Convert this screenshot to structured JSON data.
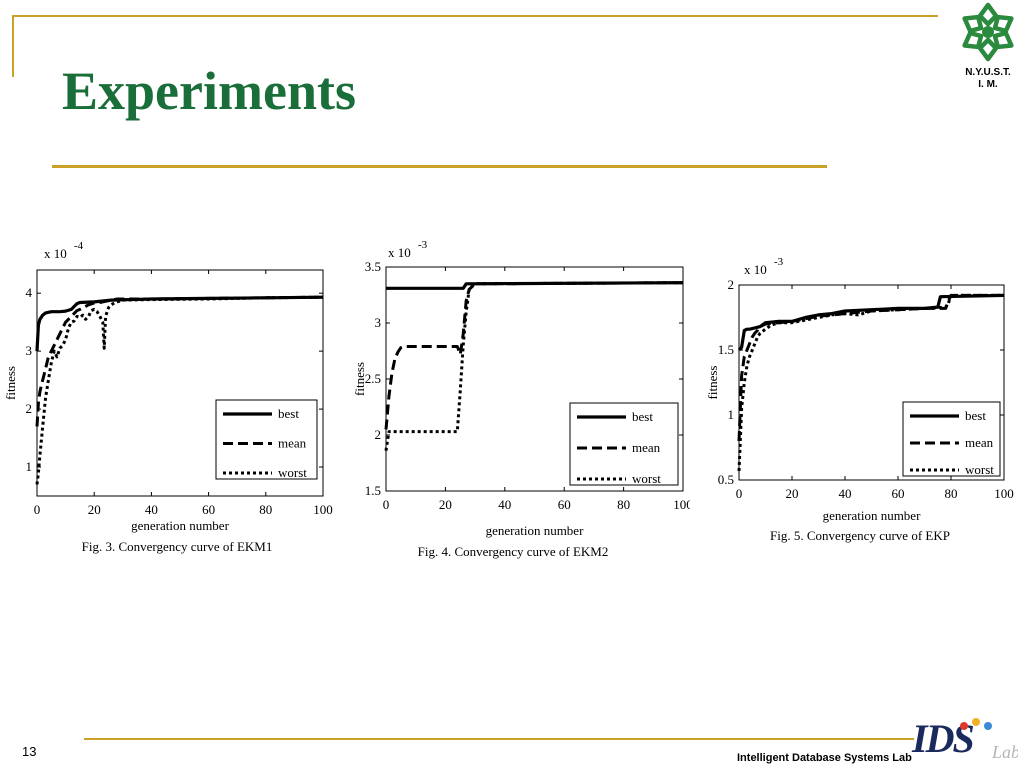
{
  "slide": {
    "title": "Experiments",
    "page_number": "13",
    "footer": "Intelligent Database Systems Lab",
    "logo_text_line1": "N.Y.U.S.T.",
    "logo_text_line2": "I. M."
  },
  "colors": {
    "title": "#1a6e3a",
    "rules": "#c9a227",
    "logo_green": "#2b8a3e",
    "ink": "#000000"
  },
  "chart_data": [
    {
      "type": "line",
      "caption": "Fig. 3. Convergency curve of EKM1",
      "xlabel": "generation number",
      "ylabel": "fitness",
      "multiplier": "x 10",
      "exponent": "-4",
      "xlim": [
        0,
        100
      ],
      "ylim": [
        0.5,
        4.4
      ],
      "xticks": [
        0,
        20,
        40,
        60,
        80,
        100
      ],
      "yticks": [
        1,
        2,
        3,
        4
      ],
      "legend": "bottom-right",
      "series": [
        {
          "name": "best",
          "style": "solid",
          "x": [
            0,
            0.5,
            1,
            2,
            3,
            5,
            8,
            10,
            12,
            14,
            15,
            20,
            26,
            40,
            60,
            80,
            100
          ],
          "y": [
            3.0,
            3.45,
            3.55,
            3.62,
            3.66,
            3.68,
            3.68,
            3.69,
            3.72,
            3.82,
            3.84,
            3.85,
            3.88,
            3.9,
            3.91,
            3.92,
            3.93
          ]
        },
        {
          "name": "mean",
          "style": "dashed",
          "x": [
            0,
            0.5,
            1,
            2,
            3,
            4,
            6,
            8,
            10,
            12,
            14,
            15,
            18,
            20,
            22,
            24,
            26,
            28,
            40,
            60,
            80,
            100
          ],
          "y": [
            1.7,
            2.1,
            2.3,
            2.5,
            2.7,
            2.9,
            3.1,
            3.3,
            3.5,
            3.6,
            3.7,
            3.72,
            3.8,
            3.83,
            3.84,
            3.86,
            3.88,
            3.9,
            3.9,
            3.91,
            3.92,
            3.93
          ]
        },
        {
          "name": "worst",
          "style": "dotted",
          "x": [
            0,
            0.5,
            1,
            2,
            3,
            4,
            5,
            6,
            7,
            8,
            9,
            10,
            11,
            12,
            13,
            14,
            15,
            16,
            17,
            18,
            19,
            20,
            21,
            22,
            23,
            23.5,
            24,
            25,
            26,
            27,
            28,
            30,
            40,
            60,
            70,
            80,
            100
          ],
          "y": [
            0.7,
            0.9,
            1.2,
            1.7,
            2.2,
            2.5,
            2.8,
            3.0,
            2.9,
            3.05,
            3.1,
            3.2,
            3.4,
            3.5,
            3.52,
            3.6,
            3.58,
            3.62,
            3.55,
            3.6,
            3.7,
            3.72,
            3.68,
            3.6,
            3.5,
            3.05,
            3.6,
            3.75,
            3.8,
            3.83,
            3.85,
            3.88,
            3.89,
            3.9,
            3.91,
            3.92,
            3.93
          ]
        }
      ]
    },
    {
      "type": "line",
      "caption": "Fig. 4. Convergency curve of EKM2",
      "xlabel": "generation number",
      "ylabel": "fitness",
      "multiplier": "x 10",
      "exponent": "-3",
      "xlim": [
        0,
        100
      ],
      "ylim": [
        1.5,
        3.5
      ],
      "xticks": [
        0,
        20,
        40,
        60,
        80,
        100
      ],
      "yticks": [
        1.5,
        2,
        2.5,
        3,
        3.5
      ],
      "legend": "bottom-right",
      "series": [
        {
          "name": "best",
          "style": "solid",
          "x": [
            0,
            26,
            27,
            100
          ],
          "y": [
            3.31,
            3.31,
            3.35,
            3.36
          ]
        },
        {
          "name": "mean",
          "style": "dashed",
          "x": [
            0,
            1,
            2,
            3,
            4,
            5,
            6,
            24,
            25,
            26,
            27,
            28,
            30,
            100
          ],
          "y": [
            2.05,
            2.35,
            2.55,
            2.68,
            2.74,
            2.78,
            2.79,
            2.79,
            2.72,
            2.9,
            3.2,
            3.3,
            3.35,
            3.36
          ]
        },
        {
          "name": "worst",
          "style": "dotted",
          "x": [
            0,
            0.5,
            1,
            24,
            25,
            26,
            27,
            28,
            29,
            30,
            100
          ],
          "y": [
            1.86,
            1.95,
            2.03,
            2.03,
            2.4,
            2.8,
            3.1,
            3.3,
            3.33,
            3.35,
            3.36
          ]
        }
      ]
    },
    {
      "type": "line",
      "caption": "Fig. 5. Convergency curve of EKP",
      "xlabel": "generation number",
      "ylabel": "fitness",
      "multiplier": "x 10",
      "exponent": "-3",
      "xlim": [
        0,
        100
      ],
      "ylim": [
        0.5,
        2.0
      ],
      "xticks": [
        0,
        20,
        40,
        60,
        80,
        100
      ],
      "yticks": [
        0.5,
        1,
        1.5,
        2
      ],
      "legend": "bottom-right",
      "series": [
        {
          "name": "best",
          "style": "solid",
          "x": [
            0,
            1,
            2,
            3,
            4,
            6,
            8,
            10,
            15,
            20,
            25,
            30,
            35,
            40,
            50,
            60,
            70,
            75,
            76,
            100
          ],
          "y": [
            1.5,
            1.52,
            1.65,
            1.66,
            1.66,
            1.67,
            1.68,
            1.71,
            1.72,
            1.72,
            1.75,
            1.77,
            1.78,
            1.8,
            1.81,
            1.82,
            1.82,
            1.83,
            1.91,
            1.92
          ]
        },
        {
          "name": "mean",
          "style": "dashed",
          "x": [
            0,
            1,
            2,
            3,
            4,
            5,
            6,
            7,
            8,
            10,
            15,
            20,
            25,
            30,
            40,
            50,
            60,
            70,
            78,
            79,
            80,
            100
          ],
          "y": [
            0.8,
            1.3,
            1.45,
            1.5,
            1.55,
            1.6,
            1.63,
            1.65,
            1.68,
            1.7,
            1.71,
            1.72,
            1.74,
            1.76,
            1.78,
            1.8,
            1.81,
            1.82,
            1.82,
            1.88,
            1.92,
            1.92
          ]
        },
        {
          "name": "worst",
          "style": "dotted",
          "x": [
            0,
            0.5,
            1,
            2,
            3,
            4,
            5,
            6,
            7,
            8,
            10,
            12,
            15,
            20,
            25,
            30,
            35,
            40,
            45,
            50,
            60,
            70,
            78,
            79,
            80,
            100
          ],
          "y": [
            0.57,
            0.8,
            1.05,
            1.25,
            1.38,
            1.45,
            1.5,
            1.55,
            1.6,
            1.63,
            1.66,
            1.69,
            1.71,
            1.71,
            1.73,
            1.75,
            1.77,
            1.78,
            1.77,
            1.8,
            1.81,
            1.82,
            1.83,
            1.86,
            1.92,
            1.92
          ]
        }
      ]
    }
  ]
}
